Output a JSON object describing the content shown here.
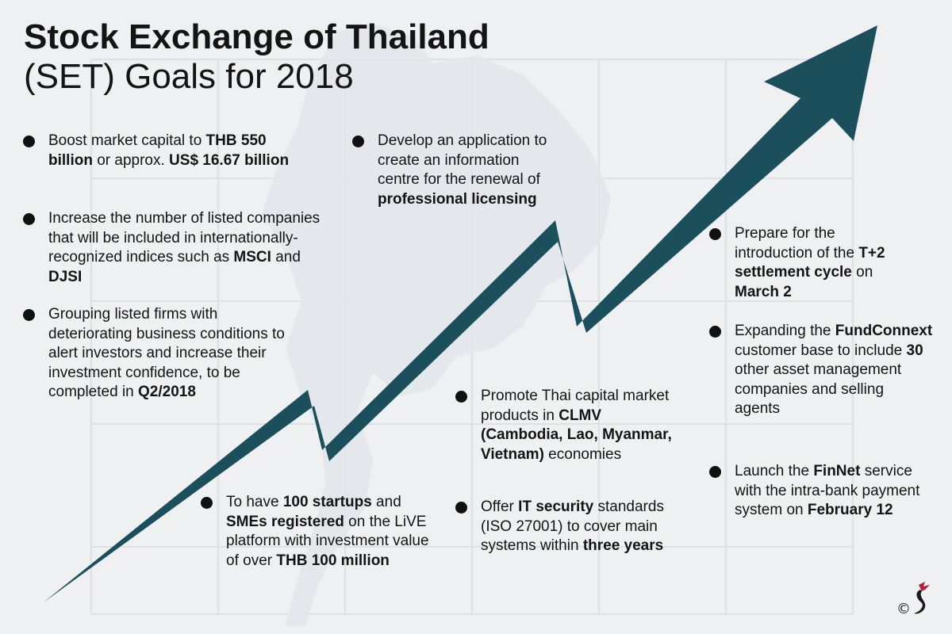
{
  "title": {
    "line1": "Stock Exchange of Thailand",
    "line2": "(SET) Goals for 2018"
  },
  "colors": {
    "background": "#eef0f2",
    "arrow": "#1c4f5c",
    "text": "#141414",
    "bullet": "#111111",
    "logo_accent": "#b0203a"
  },
  "bullets": [
    {
      "id": "market-capital",
      "segments": [
        {
          "text": "Boost market capital to "
        },
        {
          "text": "THB 550 billion",
          "bold": true
        },
        {
          "text": " or approx. "
        },
        {
          "text": "US$ 16.67 billion",
          "bold": true
        }
      ]
    },
    {
      "id": "listed-companies",
      "segments": [
        {
          "text": "Increase the number of listed companies that will be included in internationally-recognized indices such as "
        },
        {
          "text": "MSCI",
          "bold": true
        },
        {
          "text": " and "
        },
        {
          "text": "DJSI",
          "bold": true
        }
      ]
    },
    {
      "id": "grouping-firms",
      "segments": [
        {
          "text": "Grouping listed firms with deteriorating business conditions to alert investors and increase their investment confidence, to be completed in "
        },
        {
          "text": "Q2/2018",
          "bold": true
        }
      ]
    },
    {
      "id": "application",
      "segments": [
        {
          "text": "Develop an application to create an information centre for the renewal of "
        },
        {
          "text": "professional licensing",
          "bold": true
        }
      ]
    },
    {
      "id": "startups",
      "segments": [
        {
          "text": "To have "
        },
        {
          "text": "100 startups",
          "bold": true
        },
        {
          "text": " and "
        },
        {
          "text": "SMEs registered",
          "bold": true
        },
        {
          "text": " on the LiVE platform with investment value of over "
        },
        {
          "text": "THB 100 million",
          "bold": true
        }
      ]
    },
    {
      "id": "clmv",
      "segments": [
        {
          "text": "Promote Thai capital market products in "
        },
        {
          "text": "CLMV (Cambodia, Lao, Myanmar, Vietnam)",
          "bold": true
        },
        {
          "text": " economies"
        }
      ]
    },
    {
      "id": "it-security",
      "segments": [
        {
          "text": "Offer "
        },
        {
          "text": "IT security",
          "bold": true
        },
        {
          "text": " standards (ISO 27001) to cover main systems within "
        },
        {
          "text": "three years",
          "bold": true
        }
      ]
    },
    {
      "id": "settlement",
      "segments": [
        {
          "text": "Prepare for the introduction of the "
        },
        {
          "text": "T+2 settlement cycle",
          "bold": true
        },
        {
          "text": " on "
        },
        {
          "text": "March 2",
          "bold": true
        }
      ]
    },
    {
      "id": "fundconnext",
      "segments": [
        {
          "text": "Expanding the "
        },
        {
          "text": "FundConnext",
          "bold": true
        },
        {
          "text": " customer base to include "
        },
        {
          "text": "30",
          "bold": true
        },
        {
          "text": " other asset management companies and selling agents"
        }
      ]
    },
    {
      "id": "finnet",
      "segments": [
        {
          "text": "Launch the "
        },
        {
          "text": "FinNet",
          "bold": true
        },
        {
          "text": " service with the intra-bank payment system on "
        },
        {
          "text": "February 12",
          "bold": true
        }
      ]
    }
  ],
  "logo": {
    "icon": "bird-copyright-icon",
    "symbol": "©"
  }
}
